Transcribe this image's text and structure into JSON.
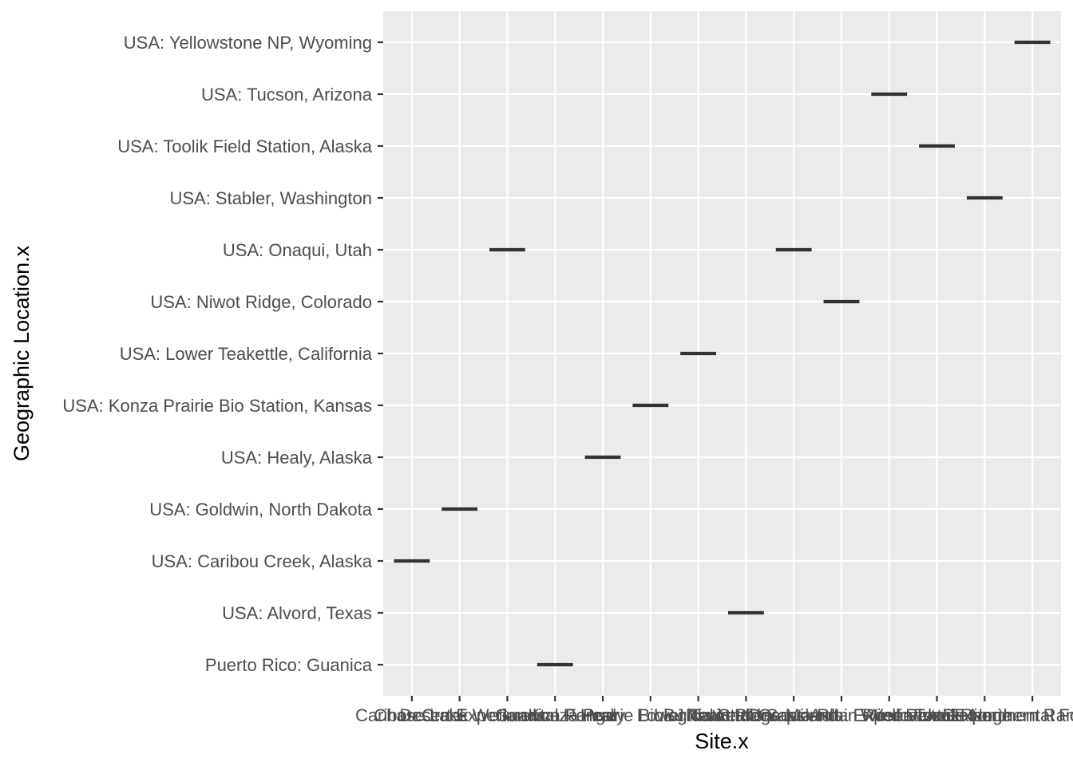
{
  "chart_data": {
    "type": "scatter",
    "mark": "crossbar",
    "xlabel": "Site.x",
    "ylabel": "Geographic Location.x",
    "y_categories": [
      "Puerto Rico: Guanica",
      "USA: Alvord, Texas",
      "USA: Caribou Creek, Alaska",
      "USA: Goldwin, North Dakota",
      "USA: Healy, Alaska",
      "USA: Konza Prairie Bio Station, Kansas",
      "USA: Lower Teakettle, California",
      "USA: Niwot Ridge, Colorado",
      "USA: Onaqui, Utah",
      "USA: Stabler, Washington",
      "USA: Toolik Field Station, Alaska",
      "USA: Tucson, Arizona",
      "USA: Yellowstone NP, Wyoming"
    ],
    "x_categories": [
      "Caribou Creek",
      "Chase Lake Wetlands",
      "Desert Experimental Range",
      "Guanica Forest",
      "Healy",
      "Konza Prairie Biological Station",
      "Lower Teakettle",
      "LBJ National Grassland",
      "Onaqui-Ault",
      "Niwot Ridge Mountain Research Station",
      "Santa Rita Experimental Range",
      "Toolik",
      "Wind River Experimental Forest",
      "Yellowstone Northern Range (Frog Rock)"
    ],
    "points": [
      {
        "x": "Caribou Creek",
        "y": "USA: Caribou Creek, Alaska"
      },
      {
        "x": "Chase Lake Wetlands",
        "y": "USA: Goldwin, North Dakota"
      },
      {
        "x": "Desert Experimental Range",
        "y": "USA: Onaqui, Utah"
      },
      {
        "x": "Guanica Forest",
        "y": "Puerto Rico: Guanica"
      },
      {
        "x": "Healy",
        "y": "USA: Healy, Alaska"
      },
      {
        "x": "Konza Prairie Biological Station",
        "y": "USA: Konza Prairie Bio Station, Kansas"
      },
      {
        "x": "Lower Teakettle",
        "y": "USA: Lower Teakettle, California"
      },
      {
        "x": "LBJ National Grassland",
        "y": "USA: Alvord, Texas"
      },
      {
        "x": "Onaqui-Ault",
        "y": "USA: Onaqui, Utah"
      },
      {
        "x": "Niwot Ridge Mountain Research Station",
        "y": "USA: Niwot Ridge, Colorado"
      },
      {
        "x": "Santa Rita Experimental Range",
        "y": "USA: Tucson, Arizona"
      },
      {
        "x": "Toolik",
        "y": "USA: Toolik Field Station, Alaska"
      },
      {
        "x": "Wind River Experimental Forest",
        "y": "USA: Stabler, Washington"
      },
      {
        "x": "Yellowstone Northern Range (Frog Rock)",
        "y": "USA: Yellowstone NP, Wyoming"
      }
    ],
    "grid": true,
    "legend": "none",
    "colors": {
      "panel_background": "#ebebeb",
      "grid": "#ffffff",
      "mark": "#333333",
      "tick": "#333333",
      "tick_label": "#4d4d4d",
      "axis_title": "#000000"
    }
  }
}
